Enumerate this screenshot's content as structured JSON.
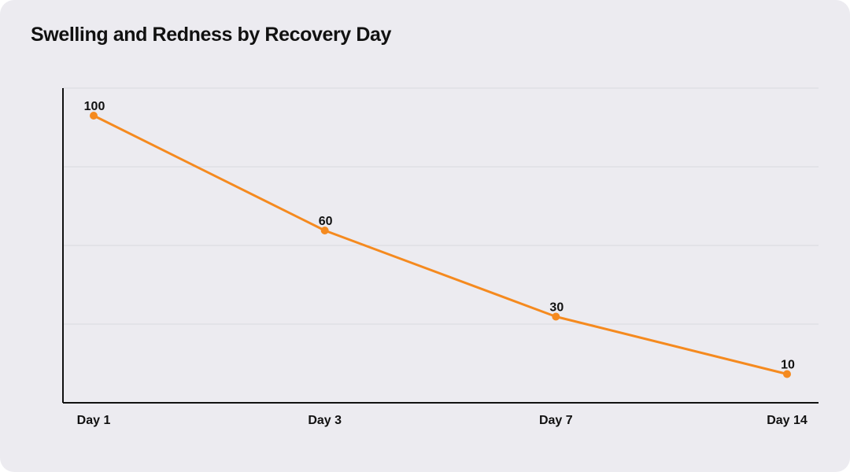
{
  "chart_data": {
    "type": "line",
    "title": "Swelling and Redness by Recovery Day",
    "xlabel": "",
    "ylabel": "",
    "categories": [
      "Day 1",
      "Day 3",
      "Day 7",
      "Day 14"
    ],
    "series": [
      {
        "values": [
          100,
          60,
          30,
          10
        ],
        "color": "#f58a1f"
      }
    ],
    "ylim": [
      0,
      110
    ],
    "grid": true,
    "legend": "none"
  }
}
